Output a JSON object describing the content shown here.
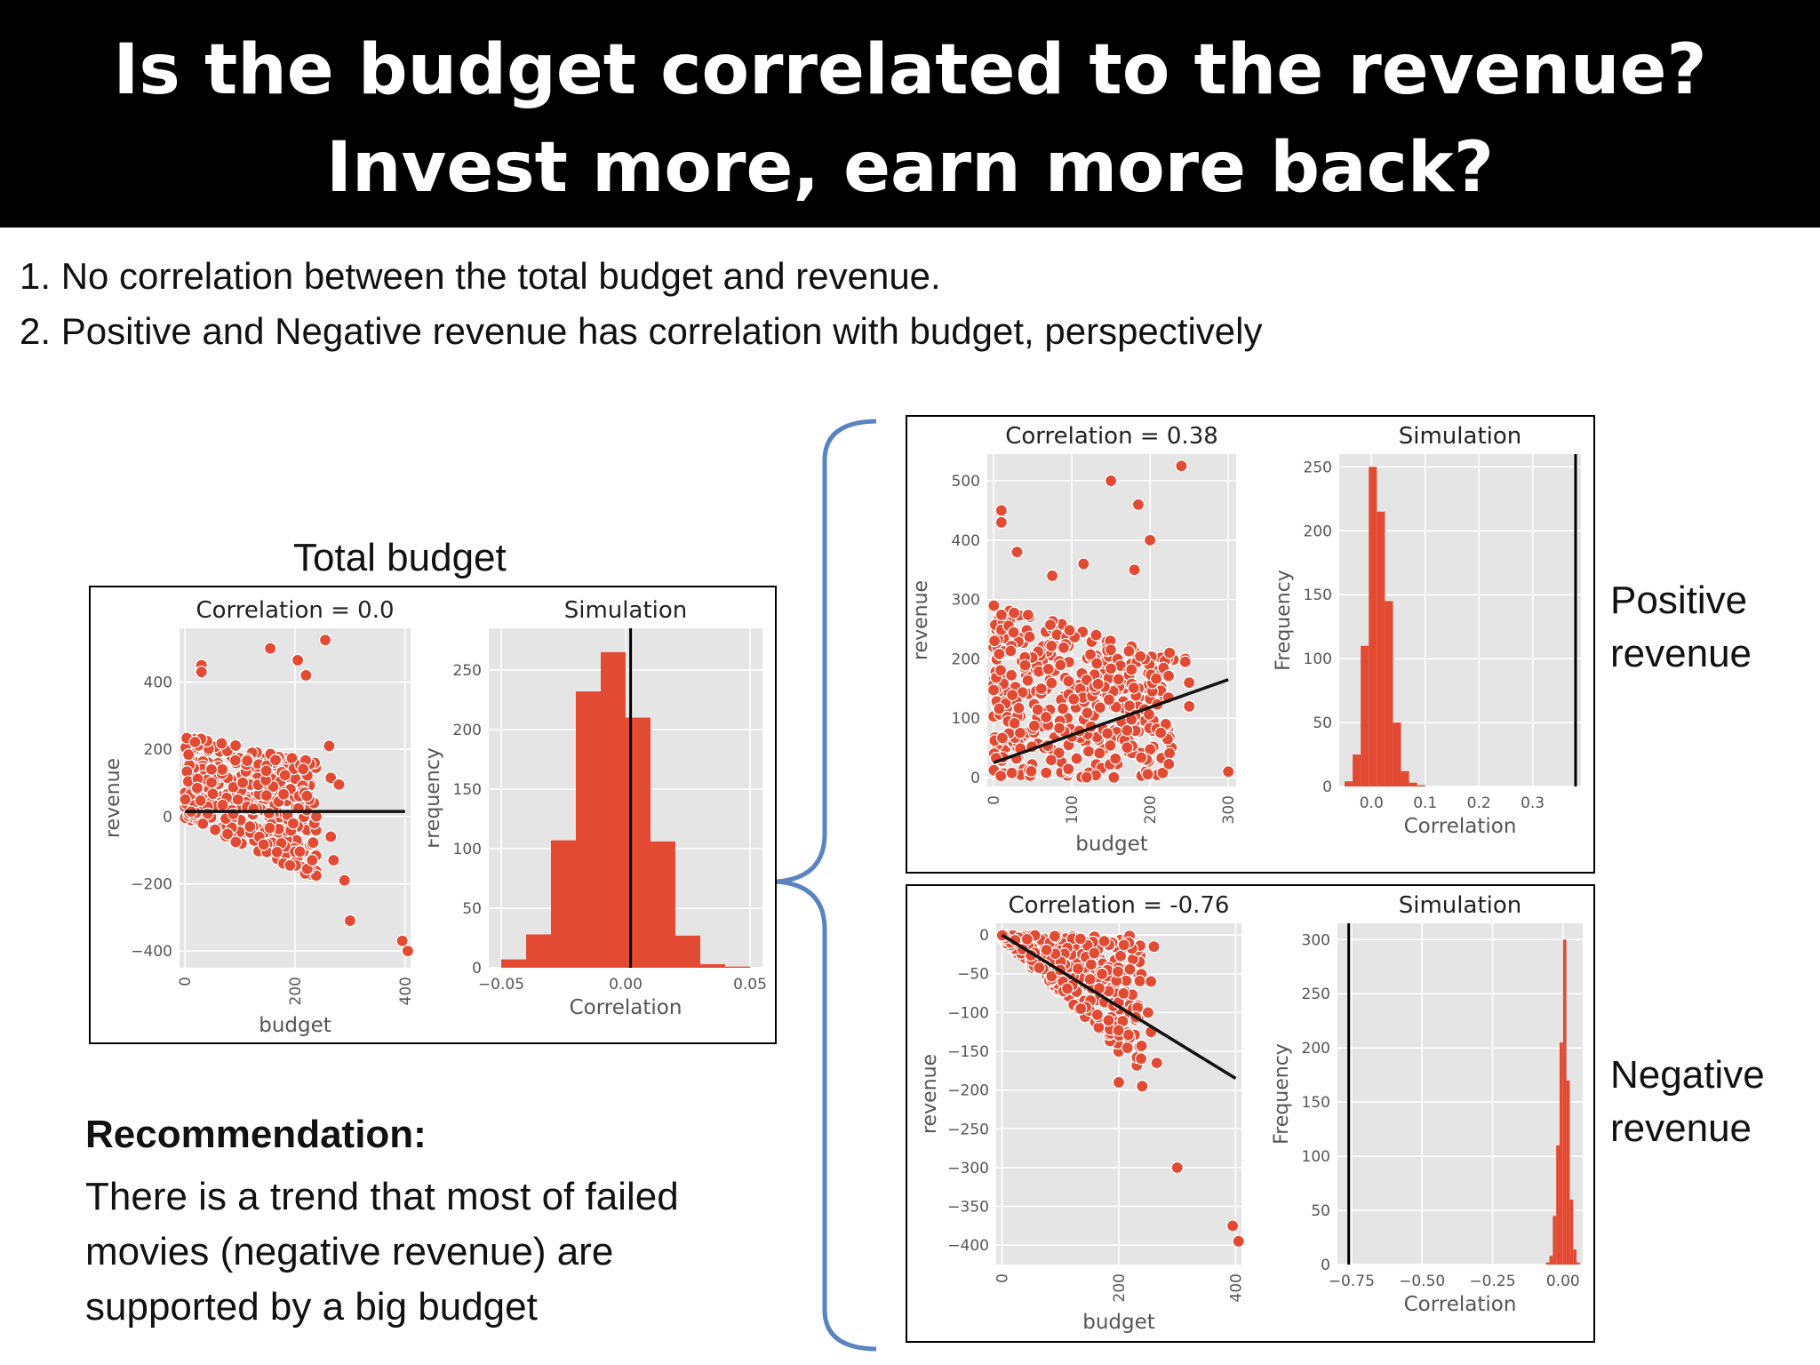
{
  "header": {
    "title": "Is the budget correlated to the revenue? Invest more, earn more back?"
  },
  "bullets": [
    "1. No correlation between the total budget and revenue.",
    "2. Positive and Negative revenue has correlation with budget, perspectively"
  ],
  "captions": {
    "total": "Total budget",
    "positive": "Positive revenue",
    "negative": "Negative revenue"
  },
  "recommendation": {
    "title": "Recommendation:",
    "body": "There is a trend that most of failed movies (negative revenue) are supported by a big budget"
  },
  "colors": {
    "accent": "#e24a33",
    "plot_bg": "#e5e5e5",
    "grid": "#ffffff",
    "brace": "#5a84c0"
  },
  "chart_data": [
    {
      "id": "total-scatter",
      "type": "scatter",
      "title": "Correlation = 0.0",
      "xlabel": "budget",
      "ylabel": "revenue",
      "xlim": [
        -10,
        410
      ],
      "ylim": [
        -450,
        560
      ],
      "xticks": [
        0,
        200,
        400
      ],
      "yticks": [
        -400,
        -200,
        0,
        200,
        400
      ],
      "regression": {
        "x": [
          0,
          400
        ],
        "y": [
          15,
          15
        ]
      },
      "highlight_points": [
        [
          30,
          450
        ],
        [
          30,
          430
        ],
        [
          155,
          500
        ],
        [
          205,
          465
        ],
        [
          220,
          420
        ],
        [
          255,
          525
        ],
        [
          262,
          210
        ],
        [
          265,
          115
        ],
        [
          280,
          95
        ],
        [
          265,
          -60
        ],
        [
          270,
          -130
        ],
        [
          290,
          -190
        ],
        [
          300,
          -310
        ],
        [
          395,
          -370
        ],
        [
          405,
          -400
        ]
      ],
      "clusters": [
        {
          "x": [
            0,
            240
          ],
          "y_top": [
            250,
            160
          ],
          "y_bottom": [
            -5,
            -190
          ],
          "n": 420
        }
      ]
    },
    {
      "id": "total-sim",
      "type": "bar",
      "title": "Simulation",
      "xlabel": "Correlation",
      "ylabel": "Frequency",
      "xlim": [
        -0.055,
        0.055
      ],
      "ylim": [
        0,
        285
      ],
      "xticks": [
        -0.05,
        0.0,
        0.05
      ],
      "xtick_labels": [
        "−0.05",
        "0.00",
        "0.05"
      ],
      "yticks": [
        0,
        50,
        100,
        150,
        200,
        250
      ],
      "bin_edges": [
        -0.05,
        -0.04,
        -0.03,
        -0.02,
        -0.01,
        0.0,
        0.01,
        0.02,
        0.03,
        0.04,
        0.05
      ],
      "values": [
        7,
        28,
        107,
        232,
        265,
        210,
        106,
        27,
        3,
        1
      ],
      "vline": 0.002
    },
    {
      "id": "pos-scatter",
      "type": "scatter",
      "title": "Correlation = 0.38",
      "xlabel": "budget",
      "ylabel": "revenue",
      "xlim": [
        -8,
        310
      ],
      "ylim": [
        -15,
        545
      ],
      "xticks": [
        0,
        100,
        200,
        300
      ],
      "yticks": [
        0,
        100,
        200,
        300,
        400,
        500
      ],
      "regression": {
        "x": [
          0,
          300
        ],
        "y": [
          25,
          165
        ]
      },
      "highlight_points": [
        [
          10,
          450
        ],
        [
          10,
          430
        ],
        [
          30,
          380
        ],
        [
          75,
          340
        ],
        [
          115,
          360
        ],
        [
          150,
          500
        ],
        [
          185,
          460
        ],
        [
          180,
          350
        ],
        [
          200,
          400
        ],
        [
          240,
          525
        ],
        [
          225,
          210
        ],
        [
          245,
          200
        ],
        [
          245,
          195
        ],
        [
          300,
          10
        ],
        [
          250,
          160
        ],
        [
          250,
          120
        ]
      ],
      "clusters": [
        {
          "x": [
            0,
            230
          ],
          "y_top": [
            300,
            200
          ],
          "y_bottom": [
            0,
            0
          ],
          "n": 400
        }
      ]
    },
    {
      "id": "pos-sim",
      "type": "bar",
      "title": "Simulation",
      "xlabel": "Correlation",
      "ylabel": "Frequency",
      "xlim": [
        -0.06,
        0.39
      ],
      "ylim": [
        0,
        260
      ],
      "xticks": [
        0.0,
        0.1,
        0.2,
        0.3
      ],
      "xtick_labels": [
        "0.0",
        "0.1",
        "0.2",
        "0.3"
      ],
      "yticks": [
        0,
        50,
        100,
        150,
        200,
        250
      ],
      "bin_edges": [
        -0.05,
        -0.035,
        -0.02,
        -0.005,
        0.01,
        0.025,
        0.04,
        0.055,
        0.07,
        0.085,
        0.1
      ],
      "values": [
        4,
        25,
        110,
        250,
        215,
        145,
        50,
        12,
        3,
        1
      ],
      "vline": 0.38
    },
    {
      "id": "neg-scatter",
      "type": "scatter",
      "title": "Correlation = -0.76",
      "xlabel": "budget",
      "ylabel": "revenue",
      "xlim": [
        -10,
        410
      ],
      "ylim": [
        -425,
        15
      ],
      "xticks": [
        0,
        200,
        400
      ],
      "yticks": [
        0,
        -50,
        -100,
        -150,
        -200,
        -250,
        -300,
        -350,
        -400
      ],
      "ytick_labels": [
        "0",
        "−50",
        "−100",
        "−150",
        "−200",
        "−250",
        "−300",
        "−350",
        "−400"
      ],
      "regression": {
        "x": [
          0,
          400
        ],
        "y": [
          0,
          -185
        ]
      },
      "highlight_points": [
        [
          200,
          -190
        ],
        [
          240,
          -195
        ],
        [
          265,
          -165
        ],
        [
          255,
          -125
        ],
        [
          250,
          -100
        ],
        [
          255,
          -60
        ],
        [
          300,
          -300
        ],
        [
          395,
          -375
        ],
        [
          405,
          -395
        ],
        [
          260,
          -15
        ]
      ],
      "clusters": [
        {
          "x": [
            0,
            240
          ],
          "y_top": [
            0,
            0
          ],
          "y_bottom": [
            -5,
            -180
          ],
          "n": 380
        }
      ]
    },
    {
      "id": "neg-sim",
      "type": "bar",
      "title": "Simulation",
      "xlabel": "Correlation",
      "ylabel": "Frequency",
      "xlim": [
        -0.8,
        0.07
      ],
      "ylim": [
        0,
        315
      ],
      "xticks": [
        -0.75,
        -0.5,
        -0.25,
        0.0
      ],
      "xtick_labels": [
        "−0.75",
        "−0.50",
        "−0.25",
        "0.00"
      ],
      "yticks": [
        0,
        50,
        100,
        150,
        200,
        250,
        300
      ],
      "bin_edges": [
        -0.06,
        -0.048,
        -0.036,
        -0.024,
        -0.012,
        0.0,
        0.012,
        0.024,
        0.036,
        0.048,
        0.06
      ],
      "values": [
        2,
        8,
        45,
        110,
        205,
        300,
        170,
        60,
        14,
        2
      ],
      "vline": -0.76
    }
  ]
}
